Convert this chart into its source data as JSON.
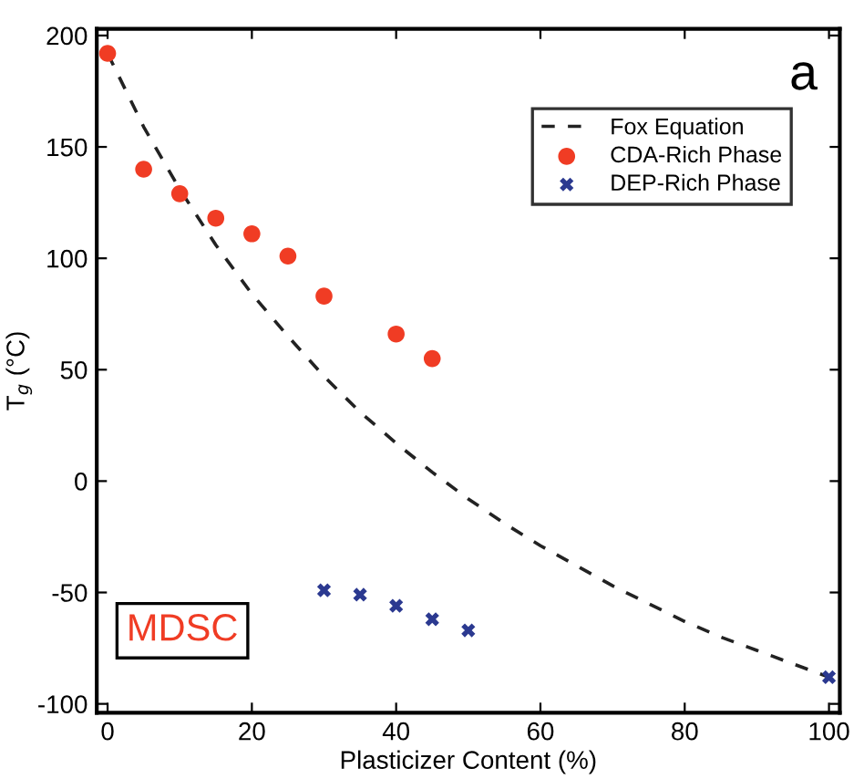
{
  "chart_data": {
    "type": "scatter",
    "xlabel": "Plasticizer Content (%)",
    "ylabel": "T$_{g}$ (°C)",
    "xlim": [
      -1.5,
      101.5
    ],
    "ylim": [
      -104,
      203
    ],
    "xticks": [
      0,
      20,
      40,
      60,
      80,
      100
    ],
    "yticks": [
      -100,
      -50,
      0,
      50,
      100,
      150,
      200
    ],
    "grid": false,
    "legend": "top right",
    "annotations": [
      "a",
      "MDSC"
    ],
    "series": [
      {
        "name": "Fox Equation",
        "type": "line",
        "line_style": "dashed",
        "marker": "none",
        "color": "#222222",
        "x": [
          0,
          5,
          10,
          15,
          20,
          25,
          30,
          35,
          40,
          45,
          50,
          55,
          60,
          65,
          70,
          75,
          80,
          85,
          90,
          95,
          100
        ],
        "values": [
          192,
          159,
          131,
          106,
          84,
          65,
          47,
          31,
          17,
          4,
          -8,
          -19,
          -29,
          -38,
          -47,
          -55,
          -63,
          -70,
          -76,
          -82,
          -88
        ]
      },
      {
        "name": "CDA-Rich Phase",
        "marker": "circle",
        "color": "#f03c24",
        "x": [
          0,
          5,
          10,
          15,
          20,
          25,
          30,
          40,
          45
        ],
        "values": [
          192,
          140,
          129,
          118,
          111,
          101,
          83,
          66,
          55
        ]
      },
      {
        "name": "DEP-Rich Phase",
        "marker": "cross",
        "color": "#2b3990",
        "x": [
          30,
          35,
          40,
          45,
          50,
          100
        ],
        "values": [
          -49,
          -51,
          -56,
          -62,
          -67,
          -88
        ]
      }
    ]
  }
}
